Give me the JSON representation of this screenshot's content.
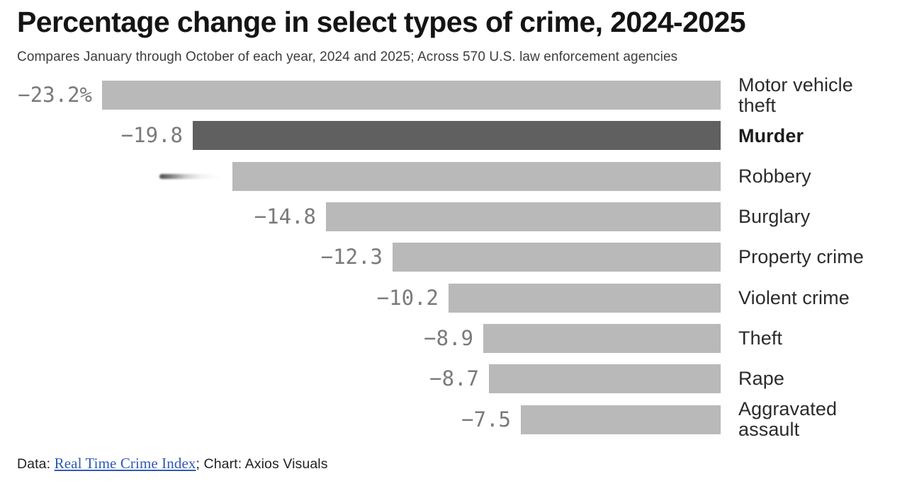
{
  "header": {
    "title": "Percentage change in select types of crime, 2024-2025",
    "subtitle": "Compares January through October of each year, 2024 and 2025; Across 570 U.S. law enforcement agencies"
  },
  "chart_data": {
    "type": "bar",
    "orientation": "horizontal",
    "unit": "percent",
    "xlim": [
      -23.2,
      0
    ],
    "baseline": "right-edge at 0",
    "grid": false,
    "legend": false,
    "bar_color": "#b9b9b9",
    "highlight_color": "#606060",
    "value_text_color": "#7a7a7a",
    "categories": [
      "Motor vehicle theft",
      "Murder",
      "Robbery",
      "Burglary",
      "Property crime",
      "Violent crime",
      "Theft",
      "Rape",
      "Aggravated assault"
    ],
    "values": [
      -23.2,
      -19.8,
      -18.3,
      -14.8,
      -12.3,
      -10.2,
      -8.9,
      -8.7,
      -7.5
    ],
    "rows": [
      {
        "label": "Motor vehicle theft",
        "value": -23.2,
        "value_label": "−23.2%",
        "bold": false,
        "highlight": false,
        "blurred_value": false
      },
      {
        "label": "Murder",
        "value": -19.8,
        "value_label": "−19.8",
        "bold": true,
        "highlight": true,
        "blurred_value": false
      },
      {
        "label": "Robbery",
        "value": -18.3,
        "value_label": "",
        "bold": false,
        "highlight": false,
        "blurred_value": true
      },
      {
        "label": "Burglary",
        "value": -14.8,
        "value_label": "−14.8",
        "bold": false,
        "highlight": false,
        "blurred_value": false
      },
      {
        "label": "Property crime",
        "value": -12.3,
        "value_label": "−12.3",
        "bold": false,
        "highlight": false,
        "blurred_value": false
      },
      {
        "label": "Violent crime",
        "value": -10.2,
        "value_label": "−10.2",
        "bold": false,
        "highlight": false,
        "blurred_value": false
      },
      {
        "label": "Theft",
        "value": -8.9,
        "value_label": "−8.9",
        "bold": false,
        "highlight": false,
        "blurred_value": false
      },
      {
        "label": "Rape",
        "value": -8.7,
        "value_label": "−8.7",
        "bold": false,
        "highlight": false,
        "blurred_value": false
      },
      {
        "label": "Aggravated assault",
        "value": -7.5,
        "value_label": "−7.5",
        "bold": false,
        "highlight": false,
        "blurred_value": false
      }
    ]
  },
  "footer": {
    "prefix": "Data: ",
    "link_label": "Real Time Crime Index",
    "link_color": "#2f5ab3",
    "suffix": "; Chart: Axios Visuals"
  }
}
